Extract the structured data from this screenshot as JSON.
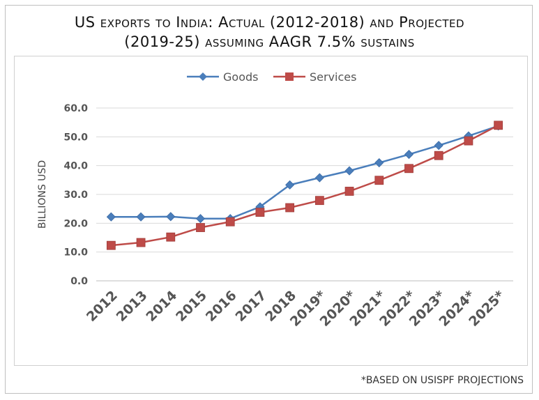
{
  "chart_data": {
    "type": "line",
    "title_line1": "US exports to India: Actual (2012-2018) and Projected",
    "title_line2": "(2019-25) assuming AAGR 7.5% sustains",
    "ylabel": "BILLIONS USD",
    "ylim": [
      0,
      60
    ],
    "yticks": [
      "0.0",
      "10.0",
      "20.0",
      "30.0",
      "40.0",
      "50.0",
      "60.0"
    ],
    "categories": [
      "2012",
      "2013",
      "2014",
      "2015",
      "2016",
      "2017",
      "2018",
      "2019*",
      "2020*",
      "2021*",
      "2022*",
      "2023*",
      "2024*",
      "2025*"
    ],
    "legend_position": "top-center",
    "grid": "horizontal",
    "series": [
      {
        "name": "Goods",
        "marker": "diamond",
        "color": "#4a7ebb",
        "values": [
          22.2,
          22.2,
          22.3,
          21.6,
          21.6,
          25.7,
          33.3,
          35.8,
          38.2,
          41.0,
          43.9,
          47.0,
          50.3,
          53.8
        ]
      },
      {
        "name": "Services",
        "marker": "square",
        "color": "#be4b48",
        "values": [
          12.3,
          13.3,
          15.2,
          18.5,
          20.5,
          23.8,
          25.4,
          27.9,
          31.1,
          34.9,
          39.0,
          43.5,
          48.6,
          54.0
        ]
      }
    ],
    "footnote": "*BASED ON USISPF PROJECTIONS"
  }
}
